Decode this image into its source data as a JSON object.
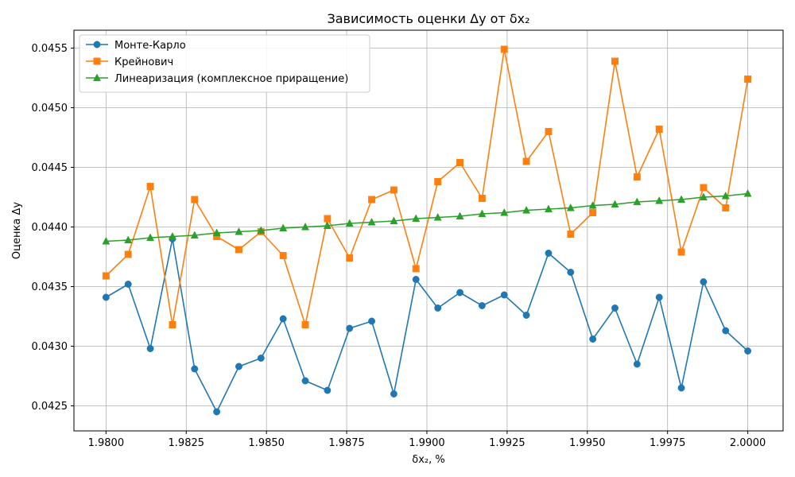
{
  "chart_data": {
    "type": "line",
    "title": "Зависимость оценки Δy от δx₂",
    "xlabel": "δx₂, %",
    "ylabel": "Оценка Δy",
    "xlim": [
      1.979,
      2.0011
    ],
    "ylim": [
      0.04229,
      0.04565
    ],
    "xticks": [
      1.98,
      1.9825,
      1.985,
      1.9875,
      1.99,
      1.9925,
      1.995,
      1.9975,
      2.0
    ],
    "xtick_labels": [
      "1.9800",
      "1.9825",
      "1.9850",
      "1.9875",
      "1.9900",
      "1.9925",
      "1.9950",
      "1.9975",
      "2.0000"
    ],
    "yticks": [
      0.0425,
      0.043,
      0.0435,
      0.044,
      0.0445,
      0.045,
      0.0455
    ],
    "ytick_labels": [
      "0.0425",
      "0.0430",
      "0.0435",
      "0.0440",
      "0.0445",
      "0.0450",
      "0.0455"
    ],
    "grid": true,
    "legend_position": "top-left",
    "x": [
      1.98,
      1.98069,
      1.98138,
      1.98207,
      1.98276,
      1.98345,
      1.98414,
      1.98483,
      1.98552,
      1.98621,
      1.9869,
      1.98759,
      1.98828,
      1.98897,
      1.98966,
      1.99034,
      1.99103,
      1.99172,
      1.99241,
      1.9931,
      1.99379,
      1.99448,
      1.99517,
      1.99586,
      1.99655,
      1.99724,
      1.99793,
      1.99862,
      1.99931,
      2.0
    ],
    "series": [
      {
        "name": "Монте-Карло",
        "color": "#1f77b4",
        "marker": "circle",
        "values": [
          0.04341,
          0.04352,
          0.04298,
          0.0439,
          0.04281,
          0.04245,
          0.04283,
          0.0429,
          0.04323,
          0.04271,
          0.04263,
          0.04315,
          0.04321,
          0.0426,
          0.04356,
          0.04332,
          0.04345,
          0.04334,
          0.04343,
          0.04326,
          0.04378,
          0.04362,
          0.04306,
          0.04332,
          0.04285,
          0.04341,
          0.04265,
          0.04354,
          0.04313,
          0.04296
        ]
      },
      {
        "name": "Крейнович",
        "color": "#ff7f0e",
        "marker": "square",
        "values": [
          0.04359,
          0.04377,
          0.04434,
          0.04318,
          0.04423,
          0.04392,
          0.04381,
          0.04396,
          0.04376,
          0.04318,
          0.04407,
          0.04374,
          0.04423,
          0.04431,
          0.04365,
          0.04438,
          0.04454,
          0.04424,
          0.04549,
          0.04455,
          0.0448,
          0.04394,
          0.04412,
          0.04539,
          0.04442,
          0.04482,
          0.04379,
          0.04433,
          0.04416,
          0.04524
        ]
      },
      {
        "name": "Линеаризация (комплексное приращение)",
        "color": "#2ca02c",
        "marker": "triangle",
        "values": [
          0.04388,
          0.04389,
          0.04391,
          0.04392,
          0.04393,
          0.04395,
          0.04396,
          0.04397,
          0.04399,
          0.044,
          0.04401,
          0.04403,
          0.04404,
          0.04405,
          0.04407,
          0.04408,
          0.04409,
          0.04411,
          0.04412,
          0.04414,
          0.04415,
          0.04416,
          0.04418,
          0.04419,
          0.04421,
          0.04422,
          0.04423,
          0.04425,
          0.04426,
          0.04428
        ]
      }
    ]
  }
}
